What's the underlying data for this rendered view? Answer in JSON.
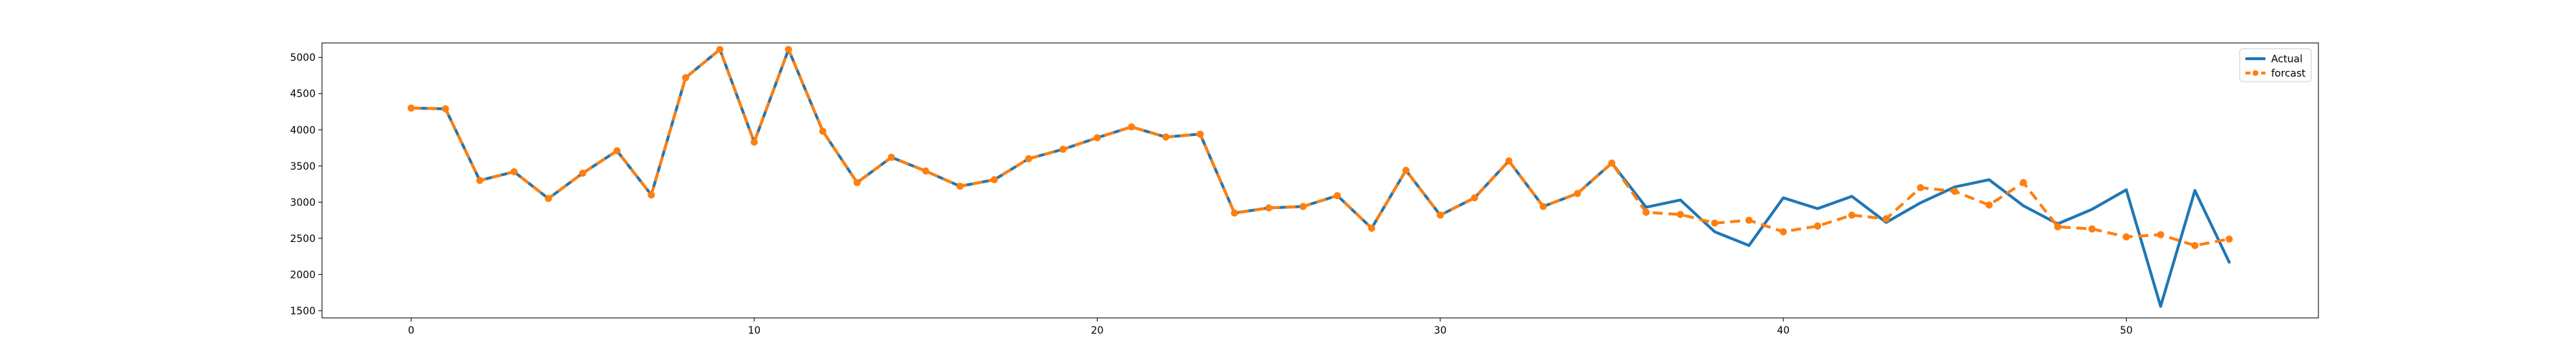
{
  "chart_data": {
    "type": "line",
    "title": "",
    "xlabel": "",
    "ylabel": "",
    "xlim": [
      -2.6,
      55.6
    ],
    "ylim": [
      1400,
      5200
    ],
    "x_ticks": [
      0,
      10,
      20,
      30,
      40,
      50
    ],
    "y_ticks": [
      1500,
      2000,
      2500,
      3000,
      3500,
      4000,
      4500,
      5000
    ],
    "grid": false,
    "legend_position": "top-right",
    "series": [
      {
        "name": "Actual",
        "color": "#1f77b4",
        "style": "solid",
        "marker": "none",
        "x": [
          0,
          1,
          2,
          3,
          4,
          5,
          6,
          7,
          8,
          9,
          10,
          11,
          12,
          13,
          14,
          15,
          16,
          17,
          18,
          19,
          20,
          21,
          22,
          23,
          24,
          25,
          26,
          27,
          28,
          29,
          30,
          31,
          32,
          33,
          34,
          35,
          36,
          37,
          38,
          39,
          40,
          41,
          42,
          43,
          44,
          45,
          46,
          47,
          48,
          49,
          50,
          51,
          52,
          53
        ],
        "values": [
          4300,
          4290,
          3300,
          3420,
          3050,
          3400,
          3710,
          3100,
          4720,
          5110,
          3830,
          5110,
          3980,
          3270,
          3620,
          3430,
          3220,
          3310,
          3600,
          3730,
          3890,
          4040,
          3900,
          3940,
          2850,
          2920,
          2940,
          3090,
          2640,
          3440,
          2820,
          3060,
          3570,
          2940,
          3120,
          3540,
          2930,
          3030,
          2590,
          2400,
          3060,
          2910,
          3080,
          2720,
          2990,
          3210,
          3310,
          2950,
          2700,
          2900,
          3170,
          1560,
          3160,
          2170
        ]
      },
      {
        "name": "forcast",
        "color": "#ff7f0e",
        "style": "dashed",
        "marker": "circle",
        "x": [
          0,
          1,
          2,
          3,
          4,
          5,
          6,
          7,
          8,
          9,
          10,
          11,
          12,
          13,
          14,
          15,
          16,
          17,
          18,
          19,
          20,
          21,
          22,
          23,
          24,
          25,
          26,
          27,
          28,
          29,
          30,
          31,
          32,
          33,
          34,
          35,
          36,
          37,
          38,
          39,
          40,
          41,
          42,
          43,
          44,
          45,
          46,
          47,
          48,
          49,
          50,
          51,
          52,
          53
        ],
        "values": [
          4300,
          4290,
          3300,
          3420,
          3050,
          3400,
          3710,
          3100,
          4720,
          5110,
          3830,
          5110,
          3980,
          3270,
          3620,
          3430,
          3220,
          3310,
          3600,
          3730,
          3890,
          4040,
          3900,
          3940,
          2850,
          2920,
          2940,
          3090,
          2640,
          3440,
          2820,
          3060,
          3570,
          2940,
          3120,
          3540,
          2860,
          2830,
          2710,
          2750,
          2590,
          2670,
          2820,
          2770,
          3200,
          3150,
          2960,
          3270,
          2660,
          2630,
          2520,
          2550,
          2400,
          2490
        ]
      }
    ]
  }
}
